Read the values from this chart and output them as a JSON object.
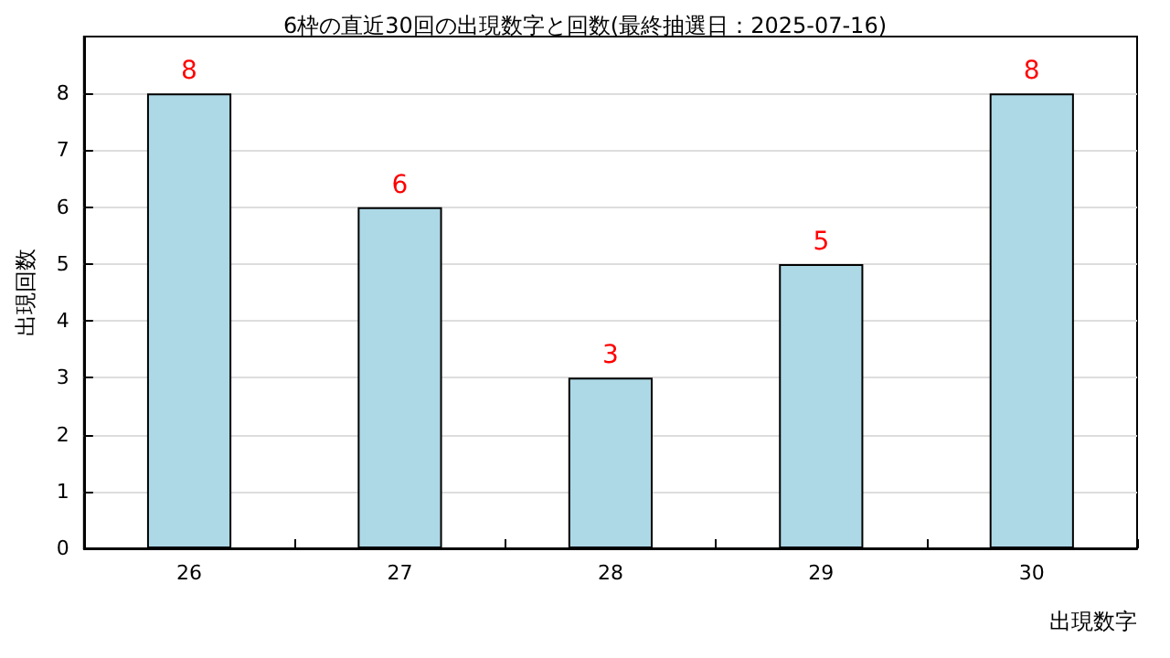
{
  "chart_data": {
    "type": "bar",
    "title": "6枠の直近30回の出現数字と回数(最終抽選日：2025-07-16)",
    "xlabel": "出現数字",
    "ylabel": "出現回数",
    "categories": [
      "26",
      "27",
      "28",
      "29",
      "30"
    ],
    "values": [
      8,
      6,
      3,
      5,
      8
    ],
    "color": "#add8e6",
    "ylim": [
      0,
      9
    ],
    "yticks": [
      0,
      1,
      2,
      3,
      4,
      5,
      6,
      7,
      8
    ],
    "grid": "y",
    "data_labels": true
  }
}
